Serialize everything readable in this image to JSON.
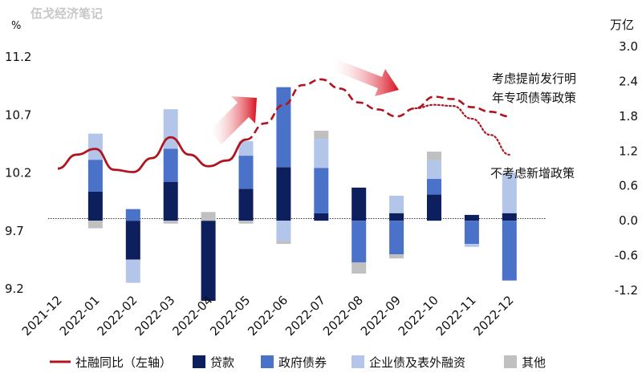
{
  "watermark": "伍戈经济笔记",
  "chart_data": {
    "type": "bar",
    "title": "",
    "left_axis": {
      "unit": "%",
      "min": 9.2,
      "max": 11.2,
      "ticks": [
        "11.2",
        "10.7",
        "10.2",
        "9.7",
        "9.2"
      ],
      "tick_values": [
        11.2,
        10.7,
        10.2,
        9.7,
        9.2
      ]
    },
    "right_axis": {
      "unit": "万亿",
      "min": -1.2,
      "max": 3.0,
      "ticks": [
        "3.0",
        "2.4",
        "1.8",
        "1.2",
        "0.6",
        "0.0",
        "-0.6",
        "-1.2"
      ],
      "tick_values": [
        3.0,
        2.4,
        1.8,
        1.2,
        0.6,
        0.0,
        -0.6,
        -1.2
      ]
    },
    "categories": [
      "2021-12",
      "2022-01",
      "2022-02",
      "2022-03",
      "2022-04",
      "2022-05",
      "2022-06",
      "2022-07",
      "2022-08",
      "2022-09",
      "2022-10",
      "2022-11",
      "2022-12"
    ],
    "series": [
      {
        "name": "贷款",
        "color": "#0d1f5c",
        "values": [
          null,
          0.5,
          -0.67,
          0.67,
          -1.38,
          0.55,
          0.92,
          0.13,
          0.57,
          0.13,
          0.45,
          0.1,
          0.13
        ]
      },
      {
        "name": "政府债券",
        "color": "#4a72c8",
        "values": [
          null,
          0.55,
          0.2,
          0.57,
          0.0,
          0.57,
          1.38,
          0.78,
          -0.72,
          -0.58,
          0.27,
          -0.4,
          -1.03
        ]
      },
      {
        "name": "企业债及表外融资",
        "color": "#b3c5e8",
        "values": [
          null,
          0.45,
          -0.4,
          0.68,
          0.0,
          0.25,
          -0.35,
          0.5,
          0.0,
          0.3,
          0.32,
          -0.05,
          0.7
        ]
      },
      {
        "name": "其他",
        "color": "#c0c0c0",
        "values": [
          null,
          -0.13,
          0.0,
          -0.05,
          0.15,
          -0.05,
          -0.05,
          0.14,
          -0.19,
          -0.07,
          0.15,
          0.0,
          0.0
        ]
      }
    ],
    "line_series": {
      "name": "社融同比（左轴）",
      "color": "#b0141e",
      "x": [
        0,
        0.5,
        1,
        1.5,
        2,
        2.5,
        3,
        3.5,
        4,
        4.5,
        5
      ],
      "y": [
        10.23,
        10.35,
        10.4,
        10.22,
        10.2,
        10.32,
        10.5,
        10.35,
        10.25,
        10.3,
        10.48
      ]
    },
    "line_dashed": {
      "name": "考虑提前发行明年专项债等政策",
      "x": [
        5,
        5.5,
        6,
        6.5,
        7,
        7.5,
        8,
        8.5,
        9,
        9.5,
        10,
        10.5,
        11,
        11.5,
        12
      ],
      "y": [
        10.48,
        10.62,
        10.78,
        10.95,
        11.0,
        10.92,
        10.8,
        10.74,
        10.68,
        10.75,
        10.85,
        10.83,
        10.76,
        10.72,
        10.68
      ]
    },
    "line_dotted": {
      "name": "不考虑新增政策",
      "x": [
        9.5,
        10,
        10.5,
        11,
        11.5,
        12
      ],
      "y": [
        10.75,
        10.78,
        10.77,
        10.66,
        10.52,
        10.35
      ]
    },
    "annotations": [
      "考虑提前发行明",
      "年专项债等政策",
      "不考虑新增政策"
    ],
    "legend_placement": "bottom",
    "grid": false
  },
  "legend": [
    {
      "label": "社融同比（左轴）",
      "kind": "line",
      "color": "#b0141e"
    },
    {
      "label": "贷款",
      "kind": "box",
      "color": "#0d1f5c"
    },
    {
      "label": "政府债券",
      "kind": "box",
      "color": "#4a72c8"
    },
    {
      "label": "企业债及表外融资",
      "kind": "box",
      "color": "#b3c5e8"
    },
    {
      "label": "其他",
      "kind": "box",
      "color": "#c0c0c0"
    }
  ]
}
